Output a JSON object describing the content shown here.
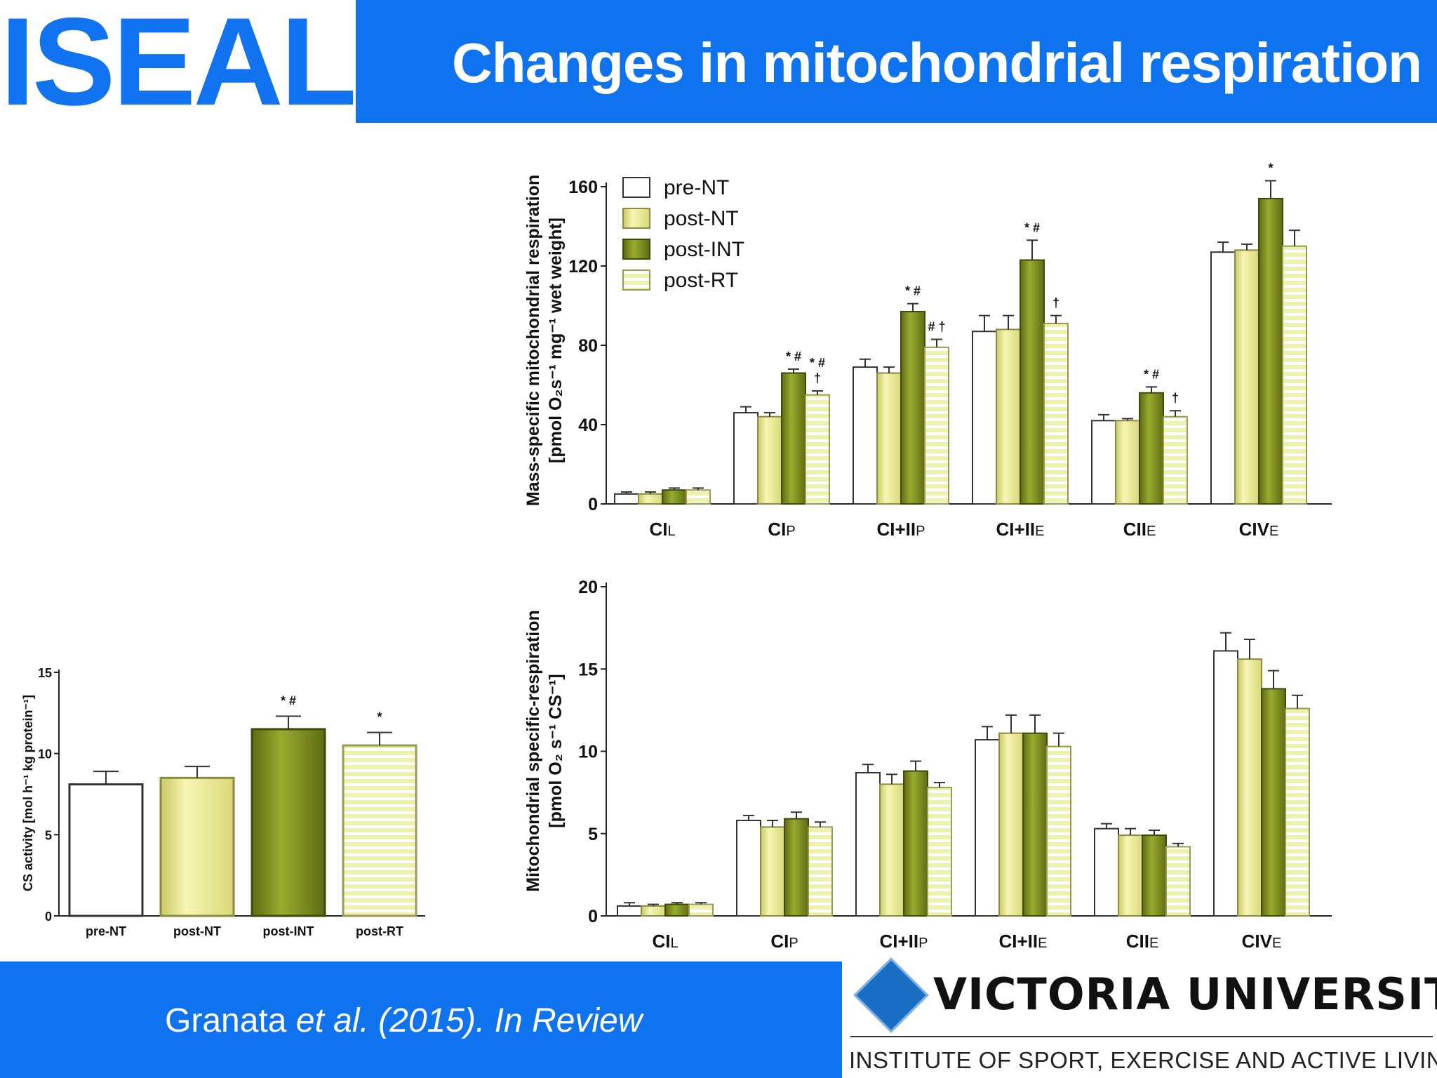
{
  "header": {
    "logo_text": "ISEAL",
    "title": "Changes in mitochondrial respiration",
    "accent_color": "#0f72ee"
  },
  "footer": {
    "citation_author": "Granata ",
    "citation_etal": "et al.",
    "citation_rest": " (2015). In Review",
    "university_name": "VICTORIA UNIVERSITY",
    "university_subtitle": "INSTITUTE OF SPORT, EXERCISE AND ACTIVE LIVING"
  },
  "series_styles": [
    {
      "name": "pre-NT",
      "fill": "#ffffff",
      "stroke": "#333333",
      "pattern": "none"
    },
    {
      "name": "post-NT",
      "fill": "#ecec92",
      "stroke": "#8a8a40",
      "pattern": "none"
    },
    {
      "name": "post-INT",
      "fill": "#7f8d1f",
      "stroke": "#3d4a0a",
      "pattern": "none"
    },
    {
      "name": "post-RT",
      "fill": "#e6e89a",
      "stroke": "#8a8a40",
      "pattern": "stripes"
    }
  ],
  "chart_data": [
    {
      "id": "mass",
      "type": "bar",
      "ylabel_line1": "Mass-specific mitochondrial respiration",
      "ylabel_line2": "[pmol O₂s⁻¹ mg⁻¹ wet weight]",
      "ylim": [
        0,
        160
      ],
      "yticks": [
        0,
        40,
        80,
        120,
        160
      ],
      "legend_position": "top-left",
      "categories": [
        {
          "main": "CI",
          "sub": "L"
        },
        {
          "main": "CI",
          "sub": "P"
        },
        {
          "main": "CI+II",
          "sub": "P"
        },
        {
          "main": "CI+II",
          "sub": "E"
        },
        {
          "main": "CII",
          "sub": "E"
        },
        {
          "main": "CIV",
          "sub": "E"
        }
      ],
      "series": [
        {
          "name": "pre-NT",
          "values": [
            5,
            46,
            69,
            87,
            42,
            127
          ],
          "errors": [
            1,
            3,
            4,
            8,
            3,
            5
          ]
        },
        {
          "name": "post-NT",
          "values": [
            5,
            44,
            66,
            88,
            42,
            128
          ],
          "errors": [
            1,
            2,
            3,
            7,
            1,
            3
          ]
        },
        {
          "name": "post-INT",
          "values": [
            7,
            66,
            97,
            123,
            56,
            154
          ],
          "errors": [
            1,
            2,
            4,
            10,
            3,
            9
          ]
        },
        {
          "name": "post-RT",
          "values": [
            7,
            55,
            79,
            91,
            44,
            130
          ],
          "errors": [
            1,
            2,
            4,
            4,
            3,
            8
          ]
        }
      ],
      "annotations": [
        {
          "cat": 1,
          "series": 2,
          "lines": [
            "* #"
          ]
        },
        {
          "cat": 1,
          "series": 3,
          "lines": [
            "* #",
            "†"
          ]
        },
        {
          "cat": 2,
          "series": 2,
          "lines": [
            "* #"
          ]
        },
        {
          "cat": 2,
          "series": 3,
          "lines": [
            "# †"
          ]
        },
        {
          "cat": 3,
          "series": 2,
          "lines": [
            "* #"
          ]
        },
        {
          "cat": 3,
          "series": 3,
          "lines": [
            "†"
          ]
        },
        {
          "cat": 4,
          "series": 2,
          "lines": [
            "* #"
          ]
        },
        {
          "cat": 4,
          "series": 3,
          "lines": [
            "†"
          ]
        },
        {
          "cat": 5,
          "series": 2,
          "lines": [
            "*"
          ]
        }
      ]
    },
    {
      "id": "mito",
      "type": "bar",
      "ylabel_line1": "Mitochondrial specific-respiration",
      "ylabel_line2": "[pmol O₂ s⁻¹ CS⁻¹]",
      "ylim": [
        0,
        20
      ],
      "yticks": [
        0,
        5,
        10,
        15,
        20
      ],
      "categories": [
        {
          "main": "CI",
          "sub": "L"
        },
        {
          "main": "CI",
          "sub": "P"
        },
        {
          "main": "CI+II",
          "sub": "P"
        },
        {
          "main": "CI+II",
          "sub": "E"
        },
        {
          "main": "CII",
          "sub": "E"
        },
        {
          "main": "CIV",
          "sub": "E"
        }
      ],
      "series": [
        {
          "name": "pre-NT",
          "values": [
            0.6,
            5.8,
            8.7,
            10.7,
            5.3,
            16.1
          ],
          "errors": [
            0.2,
            0.3,
            0.5,
            0.8,
            0.3,
            1.1
          ]
        },
        {
          "name": "post-NT",
          "values": [
            0.6,
            5.4,
            8.0,
            11.1,
            4.9,
            15.6
          ],
          "errors": [
            0.1,
            0.4,
            0.6,
            1.1,
            0.4,
            1.2
          ]
        },
        {
          "name": "post-INT",
          "values": [
            0.7,
            5.9,
            8.8,
            11.1,
            4.9,
            13.8
          ],
          "errors": [
            0.1,
            0.4,
            0.6,
            1.1,
            0.3,
            1.1
          ]
        },
        {
          "name": "post-RT",
          "values": [
            0.7,
            5.4,
            7.8,
            10.3,
            4.2,
            12.6
          ],
          "errors": [
            0.1,
            0.3,
            0.3,
            0.8,
            0.2,
            0.8
          ]
        }
      ],
      "annotations": []
    },
    {
      "id": "cs",
      "type": "bar",
      "ylabel": "CS activity [mol h⁻¹ kg protein⁻¹]",
      "ylim": [
        0,
        15
      ],
      "yticks": [
        0,
        5,
        10,
        15
      ],
      "categories": [
        "pre-NT",
        "post-NT",
        "post-INT",
        "post-RT"
      ],
      "values": [
        8.1,
        8.5,
        11.5,
        10.5
      ],
      "errors": [
        0.8,
        0.7,
        0.8,
        0.8
      ],
      "annotations": [
        {
          "index": 2,
          "text": "* #"
        },
        {
          "index": 3,
          "text": "*"
        }
      ]
    }
  ]
}
